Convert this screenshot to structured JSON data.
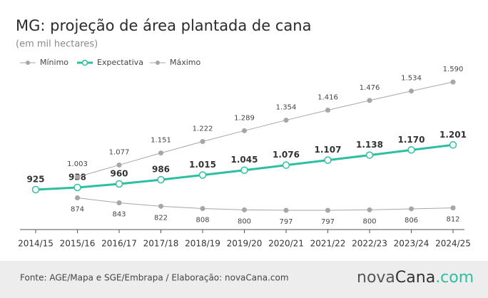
{
  "chart_data": {
    "type": "line",
    "title": "MG: projeção de área plantada de cana",
    "subtitle": "(em mil hectares)",
    "categories": [
      "2014/15",
      "2015/16",
      "2016/17",
      "2017/18",
      "2018/19",
      "2019/20",
      "2020/21",
      "2021/22",
      "2022/23",
      "2023/24",
      "2024/25"
    ],
    "series": [
      {
        "name": "Mínimo",
        "color": "#a6a6a6",
        "values": [
          null,
          874,
          843,
          822,
          808,
          800,
          797,
          797,
          800,
          806,
          812
        ],
        "value_labels": [
          null,
          "874",
          "843",
          "822",
          "808",
          "800",
          "797",
          "797",
          "800",
          "806",
          "812"
        ]
      },
      {
        "name": "Expectativa",
        "color": "#2dbfa1",
        "values": [
          925,
          938,
          960,
          986,
          1015,
          1045,
          1076,
          1107,
          1138,
          1170,
          1201
        ],
        "value_labels": [
          "925",
          "938",
          "960",
          "986",
          "1.015",
          "1.045",
          "1.076",
          "1.107",
          "1.138",
          "1.170",
          "1.201"
        ]
      },
      {
        "name": "Máximo",
        "color": "#a6a6a6",
        "values": [
          null,
          1003,
          1077,
          1151,
          1222,
          1289,
          1354,
          1416,
          1476,
          1534,
          1590
        ],
        "value_labels": [
          null,
          "1.003",
          "1.077",
          "1.151",
          "1.222",
          "1.289",
          "1.354",
          "1.416",
          "1.476",
          "1.534",
          "1.590"
        ]
      }
    ],
    "source": "Fonte: AGE/Mapa e SGE/Embrapa / Elaboração: novaCana.com",
    "logo": [
      "nova",
      "Cana",
      ".com"
    ]
  }
}
